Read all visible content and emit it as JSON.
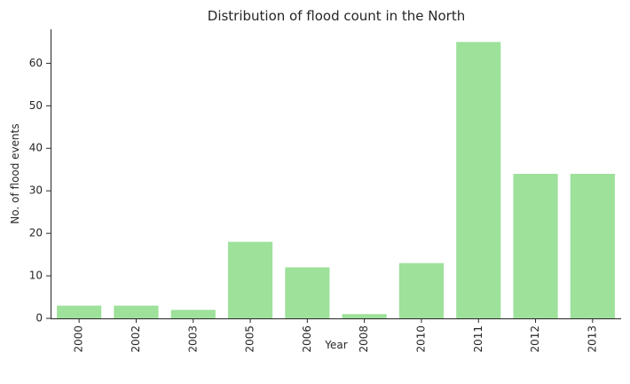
{
  "chart_data": {
    "type": "bar",
    "title": "Distribution of flood count in the North",
    "xlabel": "Year",
    "ylabel": "No. of flood events",
    "categories": [
      "2000",
      "2002",
      "2003",
      "2005",
      "2006",
      "2008",
      "2010",
      "2011",
      "2012",
      "2013"
    ],
    "values": [
      3,
      3,
      2,
      18,
      12,
      1,
      13,
      65,
      34,
      34
    ],
    "ylim": [
      0,
      68
    ],
    "yticks": [
      "0",
      "10",
      "20",
      "30",
      "40",
      "50",
      "60"
    ],
    "grid": false,
    "legend": "none",
    "bar_color": "#9de19a"
  }
}
